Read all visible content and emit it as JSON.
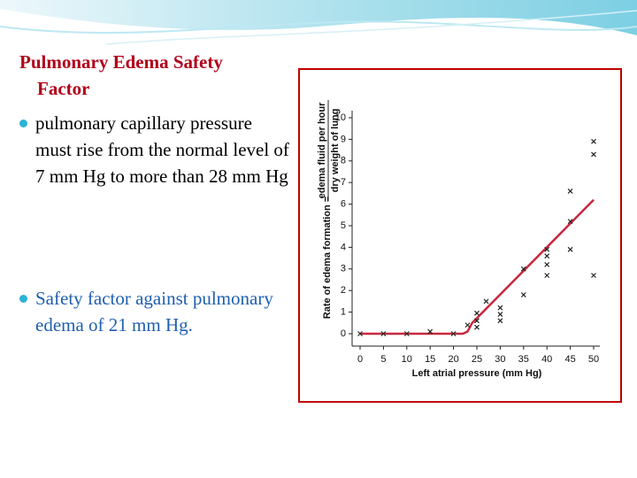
{
  "slide": {
    "title": "Pulmonary Edema Safety Factor",
    "bullets": [
      "pulmonary capillary pressure must rise from the normal level of 7 mm Hg to more than 28 mm Hg",
      "Safety factor against pulmonary edema of 21 mm Hg."
    ]
  },
  "chart_data": {
    "type": "scatter",
    "xlabel": "Left atrial pressure (mm Hg)",
    "ylabel": {
      "text": "Rate of edema formation =",
      "numerator": "edema fluid per hour",
      "denominator": "dry weight of lung"
    },
    "xlim": [
      0,
      50
    ],
    "ylim": [
      0,
      10
    ],
    "xticks": [
      0,
      5,
      10,
      15,
      20,
      25,
      30,
      35,
      40,
      45,
      50
    ],
    "yticks": [
      0,
      1,
      2,
      3,
      4,
      5,
      6,
      7,
      8,
      9,
      10
    ],
    "points": {
      "color": "#222222",
      "x": [
        0,
        5,
        10,
        15,
        20,
        23,
        25,
        25,
        25,
        27,
        30,
        30,
        30,
        35,
        35,
        40,
        40,
        40,
        40,
        45,
        45,
        45,
        50,
        50,
        50
      ],
      "y": [
        0,
        0,
        0,
        0.1,
        0,
        0.4,
        0.3,
        0.6,
        0.95,
        1.5,
        0.6,
        0.9,
        1.2,
        1.8,
        3.0,
        2.7,
        3.2,
        3.6,
        3.9,
        3.9,
        5.2,
        6.6,
        2.7,
        8.3,
        8.9
      ]
    },
    "line": {
      "color": "#c8283c",
      "x": [
        0,
        22,
        23,
        24,
        50
      ],
      "y": [
        0,
        0,
        0.1,
        0.5,
        6.2
      ]
    }
  }
}
